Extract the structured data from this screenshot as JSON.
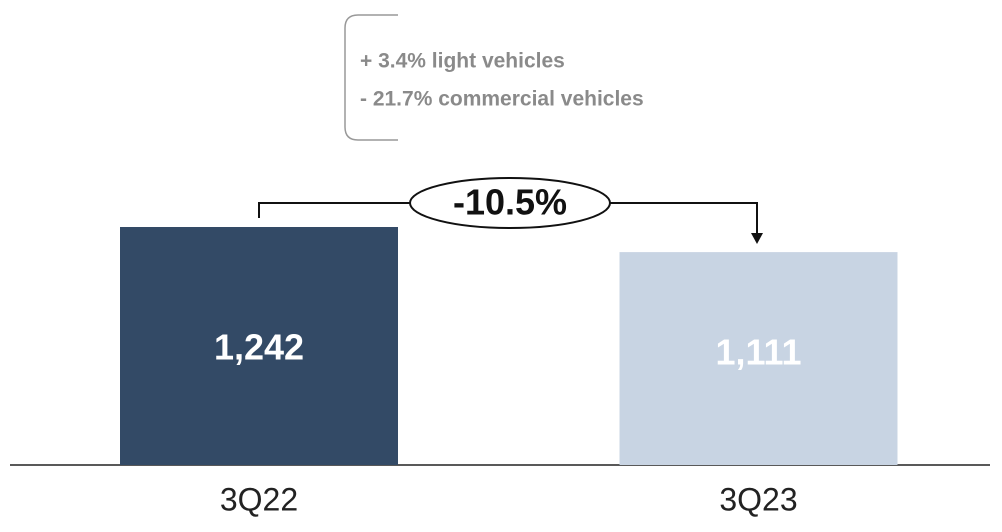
{
  "chart_data": {
    "type": "bar",
    "categories": [
      "3Q22",
      "3Q23"
    ],
    "values": [
      1242,
      1111
    ],
    "value_labels": [
      "1,242",
      "1,111"
    ],
    "colors": [
      "#334a66",
      "#c8d4e3"
    ],
    "annotations": {
      "change": "-10.5%",
      "notes": [
        "+ 3.4% light vehicles",
        "- 21.7% commercial vehicles"
      ]
    }
  }
}
